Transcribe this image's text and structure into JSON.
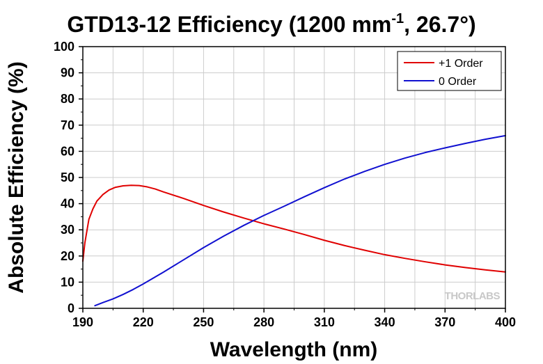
{
  "chart_data": {
    "type": "line",
    "title": "GTD13-12 Efficiency (1200 mm",
    "title_superscript": "-1",
    "title_suffix": ", 26.7°)",
    "xlabel": "Wavelength (nm)",
    "ylabel": "Absolute Efficiency (%)",
    "xlim": [
      190,
      400
    ],
    "ylim": [
      0,
      100
    ],
    "xticks": [
      190,
      220,
      250,
      280,
      310,
      340,
      370,
      400
    ],
    "yticks": [
      0,
      10,
      20,
      30,
      40,
      50,
      60,
      70,
      80,
      90,
      100
    ],
    "grid": true,
    "legend": "top-right",
    "watermark": "THORLABS",
    "series": [
      {
        "name": "+1 Order",
        "color": "#e00000",
        "x": [
          190,
          191,
          193,
          195,
          197,
          200,
          203,
          206,
          210,
          214,
          218,
          222,
          226,
          230,
          240,
          250,
          260,
          270,
          280,
          290,
          300,
          310,
          320,
          330,
          340,
          350,
          360,
          370,
          380,
          390,
          400
        ],
        "y": [
          18,
          25,
          34,
          38,
          41,
          43.5,
          45.2,
          46.2,
          46.8,
          47.0,
          46.9,
          46.4,
          45.6,
          44.5,
          42.0,
          39.3,
          36.8,
          34.5,
          32.3,
          30.3,
          28.2,
          26.0,
          24.0,
          22.2,
          20.5,
          19.1,
          17.8,
          16.6,
          15.6,
          14.7,
          13.9
        ]
      },
      {
        "name": "0 Order",
        "color": "#1010d0",
        "x": [
          196,
          200,
          205,
          210,
          215,
          220,
          230,
          240,
          250,
          260,
          270,
          280,
          290,
          300,
          310,
          320,
          330,
          340,
          350,
          360,
          370,
          380,
          390,
          400
        ],
        "y": [
          1.0,
          2.2,
          3.6,
          5.3,
          7.2,
          9.3,
          13.8,
          18.5,
          23.2,
          27.6,
          31.7,
          35.5,
          39.0,
          42.6,
          46.1,
          49.4,
          52.3,
          55.0,
          57.4,
          59.5,
          61.3,
          63.0,
          64.6,
          66.0
        ]
      }
    ]
  }
}
